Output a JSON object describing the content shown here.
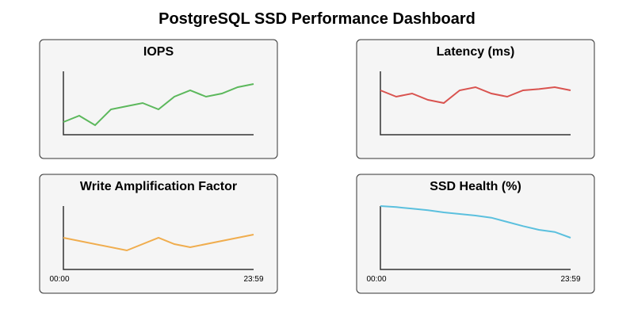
{
  "title": "PostgreSQL SSD Performance Dashboard",
  "chart_data": [
    {
      "type": "line",
      "title": "IOPS",
      "color": "#5cb85c",
      "values": [
        2,
        3,
        1.5,
        4,
        4.5,
        5,
        4,
        6,
        7,
        6,
        6.5,
        7.5,
        8
      ],
      "ylim": [
        0,
        10
      ],
      "x_tick_labels": []
    },
    {
      "type": "line",
      "title": "Latency (ms)",
      "color": "#d9534f",
      "values": [
        7,
        6,
        6.5,
        5.5,
        5,
        7,
        7.5,
        6.5,
        6,
        7,
        7.2,
        7.5,
        7
      ],
      "ylim": [
        0,
        10
      ],
      "x_tick_labels": []
    },
    {
      "type": "line",
      "title": "Write Amplification Factor",
      "color": "#f0ad4e",
      "x": [
        0,
        4,
        6,
        7,
        8,
        12
      ],
      "values": [
        5,
        3,
        5,
        4,
        3.5,
        5.5
      ],
      "ylim": [
        0,
        10
      ],
      "x_tick_labels": [
        "00:00",
        "23:59"
      ]
    },
    {
      "type": "line",
      "title": "SSD Health (%)",
      "color": "#5bc0de",
      "values": [
        10,
        9.8,
        9.5,
        9.2,
        8.8,
        8.5,
        8.2,
        7.8,
        7,
        6.2,
        5.5,
        5.1,
        4
      ],
      "ylim": [
        -2,
        10
      ],
      "x_tick_labels": [
        "00:00",
        "23:59"
      ]
    }
  ]
}
